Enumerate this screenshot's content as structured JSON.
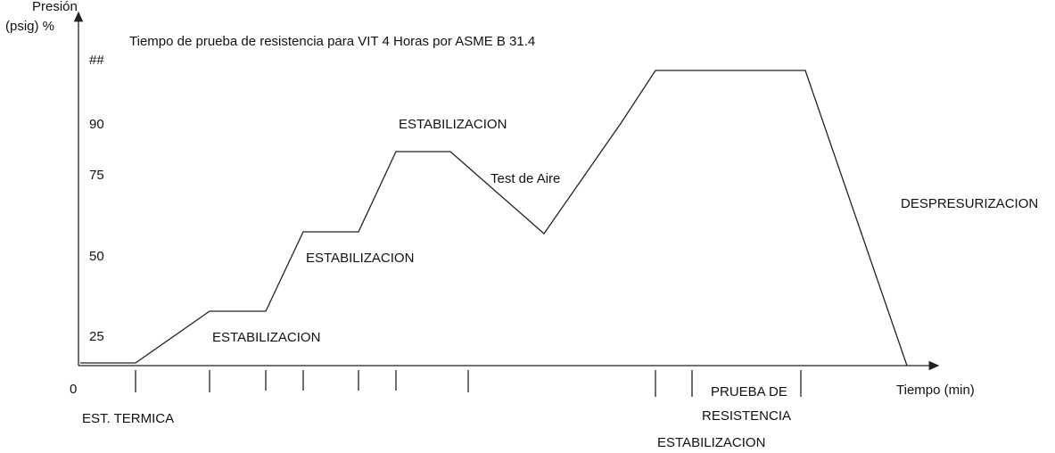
{
  "y_axis": {
    "title_line1": "Presión",
    "title_line2": "(psig) %",
    "labels": [
      "##",
      "90",
      "75",
      "50",
      "25",
      "0"
    ]
  },
  "title": "Tiempo de prueba de resistencia para VIT 4 Horas por ASME B 31.4",
  "x_axis": {
    "title": "Tiempo (min)"
  },
  "annotations": [
    "EST. TERMICA",
    "ESTABILIZACION",
    "ESTABILIZACION",
    "ESTABILIZACION",
    "Test de Aire",
    "DESPRESURIZACION",
    "PRUEBA DE",
    "RESISTENCIA",
    "ESTABILIZACION"
  ]
}
